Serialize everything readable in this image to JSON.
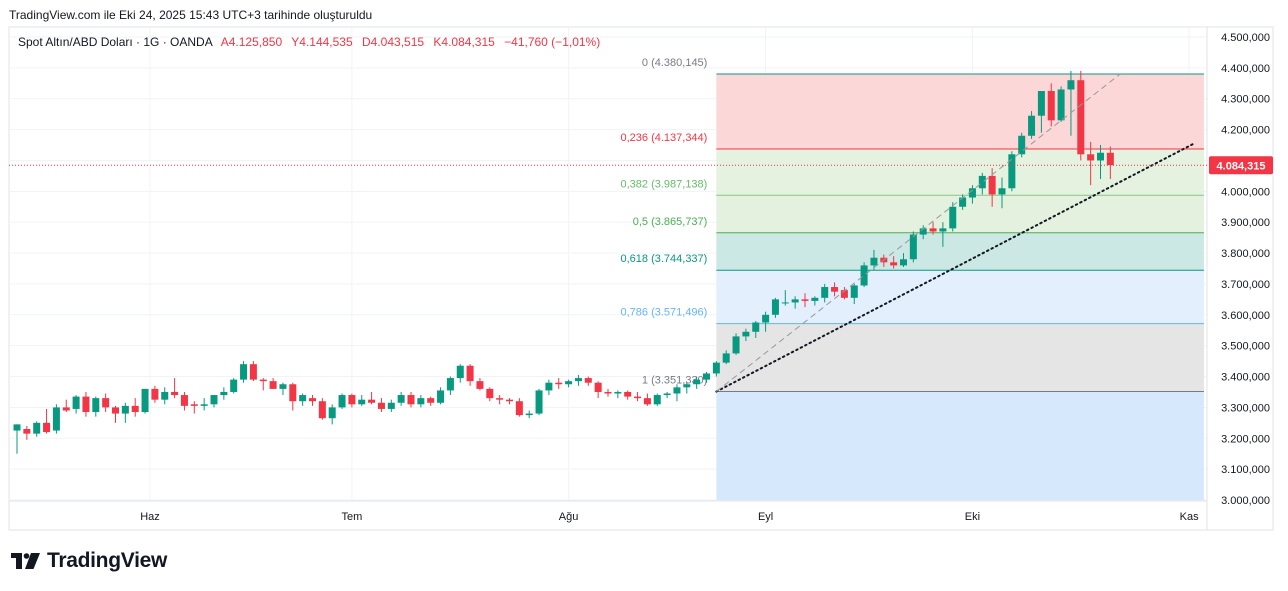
{
  "caption": "TradingView.com ile Eki 24, 2025 15:43 UTC+3 tarihinde oluşturuldu",
  "brand": {
    "name": "TradingView",
    "logo_icon": "tradingview-logo-icon"
  },
  "colors": {
    "up": "#089981",
    "down": "#f23645",
    "grid": "#f0f3fa",
    "text": "#131722"
  },
  "chart_data": {
    "type": "candlestick",
    "symbol_line": {
      "name": "Spot Altın/ABD Doları · 1G · OANDA",
      "open": "A4.125,850",
      "high": "Y4.144,535",
      "low": "D4.043,515",
      "close": "K4.084,315",
      "change": "−41,760 (−1,01%)"
    },
    "last_price_label": "4.084,315",
    "last_price": 4084.315,
    "y_axis": {
      "min": 3000,
      "max": 4500,
      "ticks": [
        4500,
        4400,
        4300,
        4200,
        4100,
        4000,
        3900,
        3800,
        3700,
        3600,
        3500,
        3400,
        3300,
        3200,
        3100,
        3000
      ],
      "tick_labels": [
        "4.500,000",
        "4.400,000",
        "4.300,000",
        "4.200,000",
        "4.100,000",
        "4.000,000",
        "3.900,000",
        "3.800,000",
        "3.700,000",
        "3.600,000",
        "3.500,000",
        "3.400,000",
        "3.300,000",
        "3.200,000",
        "3.100,000",
        "3.000,000"
      ]
    },
    "x_axis": {
      "labels": [
        {
          "text": "Haz",
          "index": 13.5
        },
        {
          "text": "Tem",
          "index": 34
        },
        {
          "text": "Ağu",
          "index": 56
        },
        {
          "text": "Eyl",
          "index": 76
        },
        {
          "text": "Eki",
          "index": 97
        },
        {
          "text": "Kas",
          "index": 119
        }
      ]
    },
    "fibonacci": {
      "start_index": 71,
      "end_index": 120.5,
      "levels": [
        {
          "label": "0 (4.380,145)",
          "ratio": 0,
          "price": 4380.145,
          "line": "#089981",
          "text": "#787b86",
          "fill": "#fbd7d7"
        },
        {
          "label": "0,236 (4.137,344)",
          "ratio": 0.236,
          "price": 4137.344,
          "line": "#f23645",
          "text": "#f23645",
          "fill": "#e5f2df"
        },
        {
          "label": "0,382 (3.987,138)",
          "ratio": 0.382,
          "price": 3987.138,
          "line": "#81c784",
          "text": "#66bb6a",
          "fill": "#e3f1de"
        },
        {
          "label": "0,5 (3.865,737)",
          "ratio": 0.5,
          "price": 3865.737,
          "line": "#4caf50",
          "text": "#4caf50",
          "fill": "#cce8e4"
        },
        {
          "label": "0,618 (3.744,337)",
          "ratio": 0.618,
          "price": 3744.337,
          "line": "#089981",
          "text": "#089981",
          "fill": "#e3effc"
        },
        {
          "label": "0,786 (3.571,496)",
          "ratio": 0.786,
          "price": 3571.496,
          "line": "#64b5f6",
          "text": "#64b5f6",
          "fill": "#e5e5e5"
        },
        {
          "label": "1 (3.351,330)",
          "ratio": 1,
          "price": 3351.33,
          "line": "#787b86",
          "text": "#787b86",
          "fill": "#d6e8fb"
        }
      ],
      "bottom_price": 3000
    },
    "trendlines": [
      {
        "style": "dotted",
        "color": "#131722",
        "from": {
          "index": 71,
          "price": 3351.33
        },
        "to": {
          "index": 119.5,
          "price": 4155
        }
      },
      {
        "style": "dashed",
        "color": "#9598a1",
        "from": {
          "index": 71,
          "price": 3351.33
        },
        "to": {
          "index": 112,
          "price": 4380.145
        }
      }
    ],
    "candles": [
      [
        3225,
        3245,
        3150,
        3245
      ],
      [
        3230,
        3240,
        3195,
        3215
      ],
      [
        3215,
        3255,
        3205,
        3250
      ],
      [
        3250,
        3295,
        3215,
        3220
      ],
      [
        3225,
        3310,
        3215,
        3300
      ],
      [
        3300,
        3325,
        3285,
        3290
      ],
      [
        3295,
        3340,
        3280,
        3335
      ],
      [
        3335,
        3350,
        3270,
        3285
      ],
      [
        3285,
        3335,
        3270,
        3330
      ],
      [
        3330,
        3345,
        3285,
        3300
      ],
      [
        3300,
        3305,
        3250,
        3280
      ],
      [
        3280,
        3315,
        3250,
        3305
      ],
      [
        3305,
        3330,
        3270,
        3285
      ],
      [
        3285,
        3360,
        3280,
        3360
      ],
      [
        3360,
        3370,
        3315,
        3325
      ],
      [
        3325,
        3365,
        3310,
        3350
      ],
      [
        3350,
        3395,
        3330,
        3340
      ],
      [
        3340,
        3350,
        3290,
        3305
      ],
      [
        3310,
        3320,
        3280,
        3305
      ],
      [
        3305,
        3330,
        3290,
        3310
      ],
      [
        3310,
        3340,
        3300,
        3340
      ],
      [
        3340,
        3365,
        3325,
        3350
      ],
      [
        3350,
        3395,
        3345,
        3390
      ],
      [
        3390,
        3450,
        3380,
        3440
      ],
      [
        3440,
        3450,
        3385,
        3390
      ],
      [
        3390,
        3395,
        3355,
        3385
      ],
      [
        3385,
        3395,
        3360,
        3360
      ],
      [
        3360,
        3380,
        3340,
        3375
      ],
      [
        3375,
        3380,
        3290,
        3320
      ],
      [
        3320,
        3345,
        3305,
        3340
      ],
      [
        3330,
        3340,
        3305,
        3320
      ],
      [
        3320,
        3330,
        3260,
        3265
      ],
      [
        3265,
        3310,
        3245,
        3300
      ],
      [
        3300,
        3345,
        3295,
        3340
      ],
      [
        3340,
        3345,
        3300,
        3310
      ],
      [
        3310,
        3340,
        3305,
        3325
      ],
      [
        3325,
        3350,
        3310,
        3315
      ],
      [
        3315,
        3330,
        3285,
        3295
      ],
      [
        3295,
        3325,
        3285,
        3315
      ],
      [
        3315,
        3350,
        3305,
        3340
      ],
      [
        3340,
        3350,
        3300,
        3310
      ],
      [
        3310,
        3340,
        3300,
        3330
      ],
      [
        3330,
        3335,
        3305,
        3315
      ],
      [
        3315,
        3365,
        3310,
        3355
      ],
      [
        3355,
        3400,
        3340,
        3395
      ],
      [
        3395,
        3440,
        3380,
        3435
      ],
      [
        3435,
        3440,
        3370,
        3385
      ],
      [
        3385,
        3395,
        3355,
        3360
      ],
      [
        3360,
        3365,
        3320,
        3330
      ],
      [
        3330,
        3340,
        3310,
        3325
      ],
      [
        3325,
        3330,
        3310,
        3320
      ],
      [
        3320,
        3330,
        3270,
        3275
      ],
      [
        3275,
        3290,
        3265,
        3280
      ],
      [
        3280,
        3360,
        3275,
        3355
      ],
      [
        3355,
        3390,
        3340,
        3380
      ],
      [
        3380,
        3395,
        3360,
        3375
      ],
      [
        3375,
        3390,
        3365,
        3385
      ],
      [
        3385,
        3405,
        3370,
        3395
      ],
      [
        3395,
        3400,
        3370,
        3380
      ],
      [
        3380,
        3385,
        3330,
        3350
      ],
      [
        3350,
        3360,
        3335,
        3345
      ],
      [
        3345,
        3355,
        3330,
        3350
      ],
      [
        3350,
        3355,
        3325,
        3335
      ],
      [
        3335,
        3350,
        3320,
        3330
      ],
      [
        3330,
        3345,
        3305,
        3310
      ],
      [
        3310,
        3345,
        3305,
        3340
      ],
      [
        3340,
        3350,
        3330,
        3345
      ],
      [
        3345,
        3375,
        3320,
        3365
      ],
      [
        3365,
        3380,
        3345,
        3375
      ],
      [
        3375,
        3400,
        3360,
        3390
      ],
      [
        3390,
        3415,
        3380,
        3410
      ],
      [
        3410,
        3450,
        3400,
        3445
      ],
      [
        3445,
        3485,
        3440,
        3475
      ],
      [
        3475,
        3540,
        3470,
        3530
      ],
      [
        3530,
        3555,
        3515,
        3545
      ],
      [
        3545,
        3580,
        3525,
        3575
      ],
      [
        3575,
        3610,
        3545,
        3600
      ],
      [
        3600,
        3655,
        3590,
        3650
      ],
      [
        3640,
        3680,
        3630,
        3640
      ],
      [
        3640,
        3660,
        3620,
        3650
      ],
      [
        3650,
        3670,
        3625,
        3645
      ],
      [
        3645,
        3660,
        3630,
        3655
      ],
      [
        3655,
        3700,
        3640,
        3690
      ],
      [
        3690,
        3705,
        3660,
        3675
      ],
      [
        3680,
        3690,
        3650,
        3655
      ],
      [
        3655,
        3700,
        3635,
        3695
      ],
      [
        3695,
        3770,
        3690,
        3760
      ],
      [
        3760,
        3810,
        3745,
        3785
      ],
      [
        3785,
        3795,
        3755,
        3770
      ],
      [
        3770,
        3790,
        3750,
        3760
      ],
      [
        3760,
        3800,
        3755,
        3780
      ],
      [
        3780,
        3870,
        3770,
        3860
      ],
      [
        3860,
        3890,
        3845,
        3880
      ],
      [
        3880,
        3900,
        3860,
        3870
      ],
      [
        3870,
        3900,
        3820,
        3880
      ],
      [
        3880,
        3965,
        3870,
        3950
      ],
      [
        3950,
        3990,
        3940,
        3980
      ],
      [
        3980,
        4020,
        3960,
        4010
      ],
      [
        4010,
        4060,
        3990,
        4050
      ],
      [
        4050,
        4075,
        3950,
        3990
      ],
      [
        3990,
        4045,
        3945,
        4010
      ],
      [
        4010,
        4130,
        4000,
        4120
      ],
      [
        4120,
        4190,
        4110,
        4180
      ],
      [
        4180,
        4260,
        4170,
        4245
      ],
      [
        4245,
        4320,
        4190,
        4325
      ],
      [
        4325,
        4350,
        4210,
        4230
      ],
      [
        4230,
        4340,
        4225,
        4330
      ],
      [
        4330,
        4390,
        4180,
        4360
      ],
      [
        4360,
        4390,
        4100,
        4120
      ],
      [
        4120,
        4160,
        4020,
        4100
      ],
      [
        4100,
        4150,
        4040,
        4125
      ],
      [
        4125,
        4145,
        4040,
        4085
      ]
    ]
  }
}
